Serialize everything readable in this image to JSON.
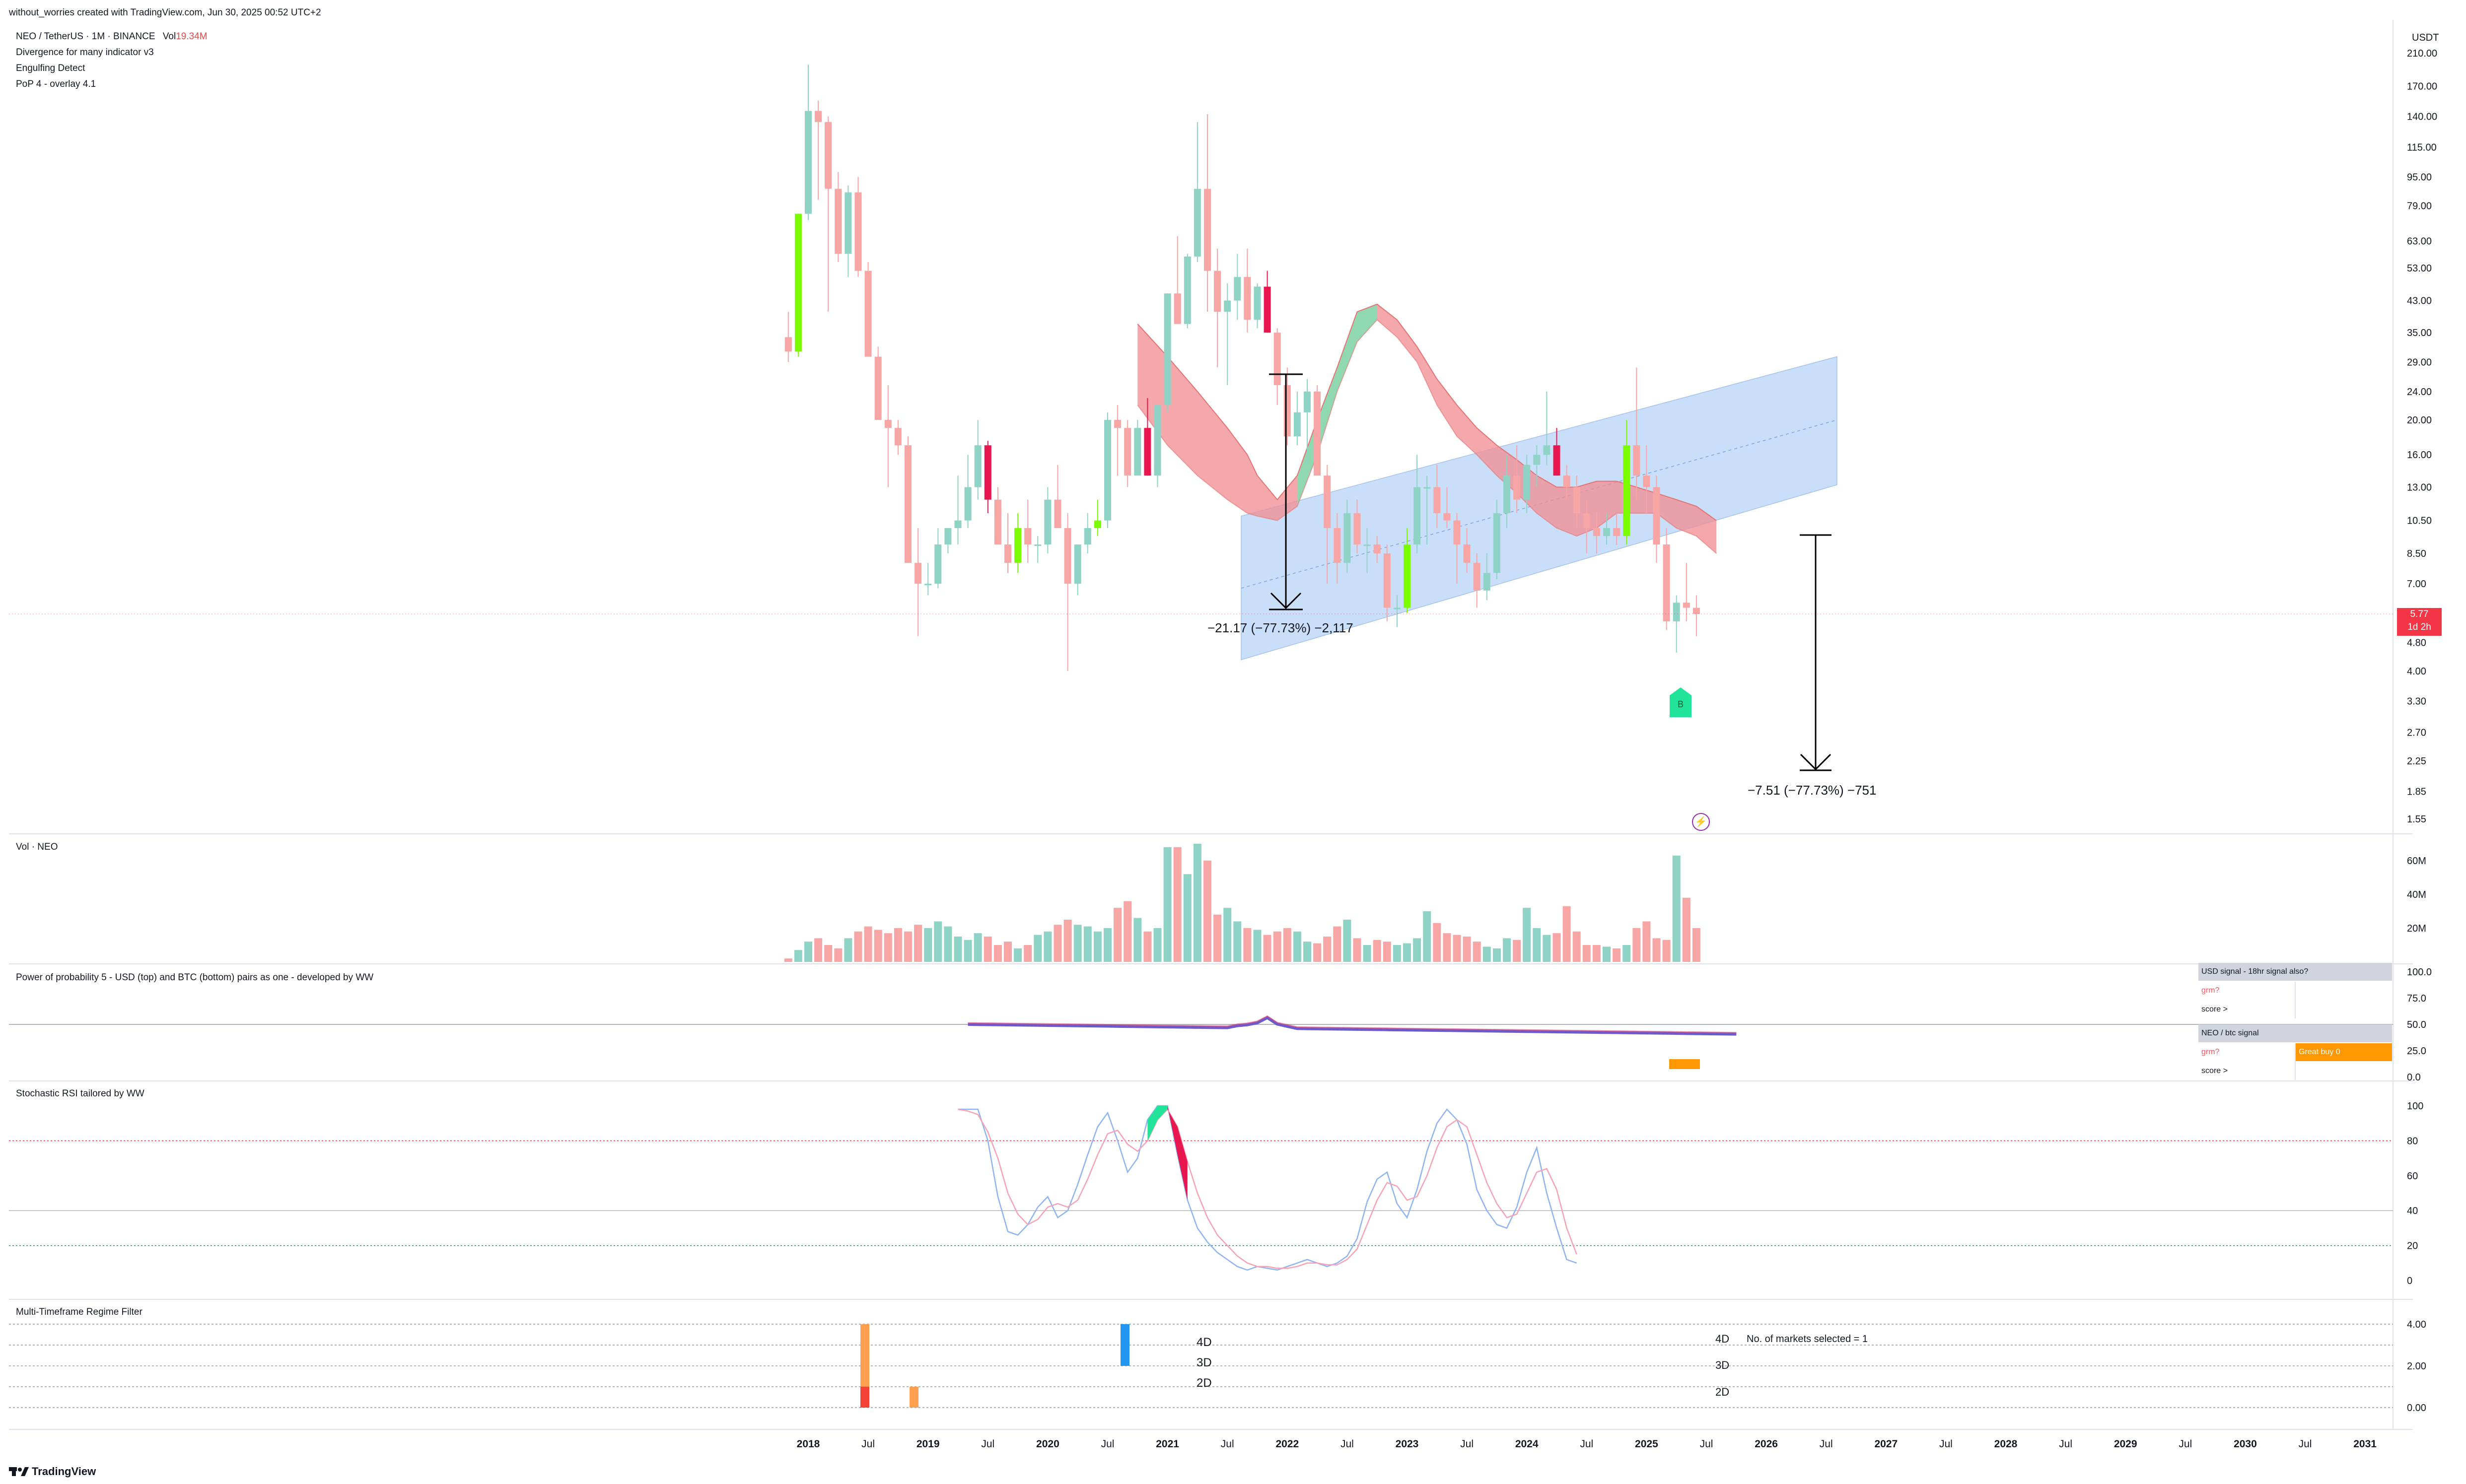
{
  "header": {
    "attribution": "without_worries created with TradingView.com, Jun 30, 2025 00:52 UTC+2"
  },
  "main": {
    "symbol_line": "NEO / TetherUS · 1M · BINANCE",
    "vol_label": "Vol",
    "vol_value": "19.34M",
    "indicators": [
      "Divergence for many indicator v3",
      "Engulfing Detect",
      "PoP 4 - overlay 4.1"
    ],
    "price_axis": {
      "unit": "USDT",
      "ticks": [
        "210.00",
        "170.00",
        "140.00",
        "115.00",
        "95.00",
        "79.00",
        "63.00",
        "53.00",
        "43.00",
        "35.00",
        "29.00",
        "24.00",
        "20.00",
        "16.00",
        "13.00",
        "10.50",
        "8.50",
        "7.00",
        "4.80",
        "4.00",
        "3.30",
        "2.70",
        "2.25",
        "1.85",
        "1.55"
      ],
      "last_price": "5.77",
      "countdown": "1d 2h"
    },
    "measure_1": "−21.17 (−77.73%) −2,117",
    "measure_2": "−7.51 (−77.73%) −751",
    "buy_marker": "B",
    "lightning": "⚡"
  },
  "volume_pane": {
    "title": "Vol · NEO",
    "ticks": [
      "60M",
      "40M",
      "20M"
    ]
  },
  "pop_pane": {
    "title": "Power of probability 5 - USD (top) and BTC (bottom) pairs as one - developed by WW",
    "ticks": [
      "100.0",
      "75.0",
      "50.0",
      "25.0",
      "0.0"
    ],
    "table": [
      [
        "USD signal - 18hr signal also?",
        ""
      ],
      [
        "grm?",
        ""
      ],
      [
        "score >",
        ""
      ],
      [
        "NEO / btc signal",
        ""
      ],
      [
        "grm?",
        "Great buy 0"
      ],
      [
        "score >",
        ""
      ]
    ]
  },
  "rsi_pane": {
    "title": "Stochastic RSI tailored by WW",
    "ticks": [
      "100",
      "80",
      "60",
      "40",
      "20",
      "0"
    ]
  },
  "regime_pane": {
    "title": "Multi-Timeframe Regime Filter",
    "ticks": [
      "4.00",
      "2.00",
      "0.00"
    ],
    "labels_mid": [
      "4D",
      "3D",
      "2D"
    ],
    "labels_right": [
      "4D",
      "3D",
      "2D"
    ],
    "markets_note": "No. of markets selected = 1"
  },
  "time_axis": [
    "2018",
    "Jul",
    "2019",
    "Jul",
    "2020",
    "Jul",
    "2021",
    "Jul",
    "2022",
    "Jul",
    "2023",
    "Jul",
    "2024",
    "Jul",
    "2025",
    "Jul",
    "2026",
    "Jul",
    "2027",
    "Jul",
    "2028",
    "Jul",
    "2029",
    "Jul",
    "2030",
    "Jul",
    "2031"
  ],
  "footer": {
    "logo": "TradingView"
  },
  "colors": {
    "up": "#8fd3c6",
    "down": "#f7a5a5",
    "bull_engulf": "#7cfc00",
    "bear_engulf": "#e8174f",
    "channel": "#bcd6f7",
    "ribbon_red": "#f28b90",
    "ribbon_green": "#7ee2b0",
    "stoch_k": "#8fb4f2",
    "stoch_d": "#f5a3b5",
    "pop_line": "#6a5acd",
    "orange": "#ff9800"
  },
  "chart_data": [
    {
      "type": "candlestick",
      "title": "NEO / TetherUS · 1M · BINANCE",
      "ylabel": "USDT",
      "y_scale": "log",
      "ylim": [
        1.5,
        220
      ],
      "x_range": [
        "2017-11",
        "2031-01"
      ],
      "candles": [
        {
          "t": "2017-11",
          "o": 34,
          "h": 40,
          "l": 29,
          "c": 31
        },
        {
          "t": "2017-12",
          "o": 31,
          "h": 75,
          "l": 30,
          "c": 75
        },
        {
          "t": "2018-01",
          "o": 75,
          "h": 195,
          "l": 72,
          "c": 145
        },
        {
          "t": "2018-02",
          "o": 145,
          "h": 155,
          "l": 82,
          "c": 135
        },
        {
          "t": "2018-03",
          "o": 135,
          "h": 140,
          "l": 40,
          "c": 88
        },
        {
          "t": "2018-04",
          "o": 88,
          "h": 98,
          "l": 55,
          "c": 58
        },
        {
          "t": "2018-05",
          "o": 58,
          "h": 90,
          "l": 50,
          "c": 86
        },
        {
          "t": "2018-06",
          "o": 86,
          "h": 95,
          "l": 50,
          "c": 52
        },
        {
          "t": "2018-07",
          "o": 52,
          "h": 55,
          "l": 30,
          "c": 30
        },
        {
          "t": "2018-08",
          "o": 30,
          "h": 32,
          "l": 20,
          "c": 20
        },
        {
          "t": "2018-09",
          "o": 20,
          "h": 25,
          "l": 13,
          "c": 19
        },
        {
          "t": "2018-10",
          "o": 19,
          "h": 20,
          "l": 16,
          "c": 17
        },
        {
          "t": "2018-11",
          "o": 17,
          "h": 18,
          "l": 8,
          "c": 8
        },
        {
          "t": "2018-12",
          "o": 8,
          "h": 10,
          "l": 5,
          "c": 7
        },
        {
          "t": "2019-01",
          "o": 7,
          "h": 8,
          "l": 6.5,
          "c": 7
        },
        {
          "t": "2019-02",
          "o": 7,
          "h": 10,
          "l": 6.8,
          "c": 9
        },
        {
          "t": "2019-03",
          "o": 9,
          "h": 10,
          "l": 8.5,
          "c": 10
        },
        {
          "t": "2019-04",
          "o": 10,
          "h": 14,
          "l": 9,
          "c": 10.5
        },
        {
          "t": "2019-05",
          "o": 10.5,
          "h": 16,
          "l": 10,
          "c": 13
        },
        {
          "t": "2019-06",
          "o": 13,
          "h": 20,
          "l": 12,
          "c": 17
        },
        {
          "t": "2019-07",
          "o": 17,
          "h": 17.5,
          "l": 11,
          "c": 12
        },
        {
          "t": "2019-08",
          "o": 12,
          "h": 13,
          "l": 9,
          "c": 9
        },
        {
          "t": "2019-09",
          "o": 9,
          "h": 11,
          "l": 7.5,
          "c": 8
        },
        {
          "t": "2019-10",
          "o": 8,
          "h": 11,
          "l": 7.5,
          "c": 10
        },
        {
          "t": "2019-11",
          "o": 10,
          "h": 12,
          "l": 8,
          "c": 9
        },
        {
          "t": "2019-12",
          "o": 9,
          "h": 9.5,
          "l": 8,
          "c": 9
        },
        {
          "t": "2020-01",
          "o": 9,
          "h": 13,
          "l": 8.5,
          "c": 12
        },
        {
          "t": "2020-02",
          "o": 12,
          "h": 15,
          "l": 10,
          "c": 10
        },
        {
          "t": "2020-03",
          "o": 10,
          "h": 11,
          "l": 4,
          "c": 7
        },
        {
          "t": "2020-04",
          "o": 7,
          "h": 9,
          "l": 6.5,
          "c": 9
        },
        {
          "t": "2020-05",
          "o": 9,
          "h": 11,
          "l": 8.5,
          "c": 10
        },
        {
          "t": "2020-06",
          "o": 10,
          "h": 12,
          "l": 9.5,
          "c": 10.5
        },
        {
          "t": "2020-07",
          "o": 10.5,
          "h": 21,
          "l": 10,
          "c": 20
        },
        {
          "t": "2020-08",
          "o": 20,
          "h": 22,
          "l": 14,
          "c": 19
        },
        {
          "t": "2020-09",
          "o": 19,
          "h": 20,
          "l": 13,
          "c": 14
        },
        {
          "t": "2020-10",
          "o": 14,
          "h": 20,
          "l": 14,
          "c": 19
        },
        {
          "t": "2020-11",
          "o": 19,
          "h": 23,
          "l": 14,
          "c": 14
        },
        {
          "t": "2020-12",
          "o": 14,
          "h": 22,
          "l": 13,
          "c": 22
        },
        {
          "t": "2021-01",
          "o": 22,
          "h": 45,
          "l": 21,
          "c": 45
        },
        {
          "t": "2021-02",
          "o": 45,
          "h": 65,
          "l": 37,
          "c": 37
        },
        {
          "t": "2021-03",
          "o": 37,
          "h": 58,
          "l": 36,
          "c": 57
        },
        {
          "t": "2021-04",
          "o": 57,
          "h": 135,
          "l": 55,
          "c": 88
        },
        {
          "t": "2021-05",
          "o": 88,
          "h": 142,
          "l": 40,
          "c": 52
        },
        {
          "t": "2021-06",
          "o": 52,
          "h": 60,
          "l": 28,
          "c": 40
        },
        {
          "t": "2021-07",
          "o": 40,
          "h": 48,
          "l": 25,
          "c": 43
        },
        {
          "t": "2021-08",
          "o": 43,
          "h": 58,
          "l": 38,
          "c": 50
        },
        {
          "t": "2021-09",
          "o": 50,
          "h": 60,
          "l": 35,
          "c": 38
        },
        {
          "t": "2021-10",
          "o": 38,
          "h": 48,
          "l": 36,
          "c": 47
        },
        {
          "t": "2021-11",
          "o": 47,
          "h": 52,
          "l": 35,
          "c": 35
        },
        {
          "t": "2021-12",
          "o": 35,
          "h": 36,
          "l": 22,
          "c": 25
        },
        {
          "t": "2022-01",
          "o": 25,
          "h": 28,
          "l": 17,
          "c": 18
        },
        {
          "t": "2022-02",
          "o": 18,
          "h": 24,
          "l": 17,
          "c": 21
        },
        {
          "t": "2022-03",
          "o": 21,
          "h": 26,
          "l": 15,
          "c": 24
        },
        {
          "t": "2022-04",
          "o": 24,
          "h": 25,
          "l": 14,
          "c": 14
        },
        {
          "t": "2022-05",
          "o": 14,
          "h": 15,
          "l": 7,
          "c": 10
        },
        {
          "t": "2022-06",
          "o": 10,
          "h": 11,
          "l": 7,
          "c": 8
        },
        {
          "t": "2022-07",
          "o": 8,
          "h": 12,
          "l": 7.5,
          "c": 11
        },
        {
          "t": "2022-08",
          "o": 11,
          "h": 12,
          "l": 8.5,
          "c": 9
        },
        {
          "t": "2022-09",
          "o": 9,
          "h": 10,
          "l": 7.5,
          "c": 9
        },
        {
          "t": "2022-10",
          "o": 9,
          "h": 9.5,
          "l": 8,
          "c": 8.5
        },
        {
          "t": "2022-11",
          "o": 8.5,
          "h": 9,
          "l": 5.5,
          "c": 6
        },
        {
          "t": "2022-12",
          "o": 6,
          "h": 6.5,
          "l": 5.3,
          "c": 6
        },
        {
          "t": "2023-01",
          "o": 6,
          "h": 10,
          "l": 5.8,
          "c": 9
        },
        {
          "t": "2023-02",
          "o": 9,
          "h": 16,
          "l": 8.5,
          "c": 13
        },
        {
          "t": "2023-03",
          "o": 13,
          "h": 14,
          "l": 9,
          "c": 13
        },
        {
          "t": "2023-04",
          "o": 13,
          "h": 15,
          "l": 10,
          "c": 11
        },
        {
          "t": "2023-05",
          "o": 11,
          "h": 13,
          "l": 10,
          "c": 10.5
        },
        {
          "t": "2023-06",
          "o": 10.5,
          "h": 11,
          "l": 7,
          "c": 9
        },
        {
          "t": "2023-07",
          "o": 9,
          "h": 10,
          "l": 7.5,
          "c": 8
        },
        {
          "t": "2023-08",
          "o": 8,
          "h": 8.5,
          "l": 6,
          "c": 6.7
        },
        {
          "t": "2023-09",
          "o": 6.7,
          "h": 8.5,
          "l": 6.3,
          "c": 7.5
        },
        {
          "t": "2023-10",
          "o": 7.5,
          "h": 12,
          "l": 7.2,
          "c": 11
        },
        {
          "t": "2023-11",
          "o": 11,
          "h": 16,
          "l": 10,
          "c": 14
        },
        {
          "t": "2023-12",
          "o": 14,
          "h": 17,
          "l": 11,
          "c": 12
        },
        {
          "t": "2024-01",
          "o": 12,
          "h": 16,
          "l": 11,
          "c": 15
        },
        {
          "t": "2024-02",
          "o": 15,
          "h": 17,
          "l": 13,
          "c": 16
        },
        {
          "t": "2024-03",
          "o": 16,
          "h": 24,
          "l": 15,
          "c": 17
        },
        {
          "t": "2024-04",
          "o": 17,
          "h": 19,
          "l": 14,
          "c": 14
        },
        {
          "t": "2024-05",
          "o": 14,
          "h": 15,
          "l": 12,
          "c": 13
        },
        {
          "t": "2024-06",
          "o": 13,
          "h": 14,
          "l": 10,
          "c": 11
        },
        {
          "t": "2024-07",
          "o": 11,
          "h": 12,
          "l": 8.5,
          "c": 10
        },
        {
          "t": "2024-08",
          "o": 10,
          "h": 11,
          "l": 8.5,
          "c": 9.5
        },
        {
          "t": "2024-09",
          "o": 9.5,
          "h": 11,
          "l": 9,
          "c": 10
        },
        {
          "t": "2024-10",
          "o": 10,
          "h": 11,
          "l": 9,
          "c": 9.5
        },
        {
          "t": "2024-11",
          "o": 9.5,
          "h": 20,
          "l": 9,
          "c": 17
        },
        {
          "t": "2024-12",
          "o": 17,
          "h": 28,
          "l": 12,
          "c": 14
        },
        {
          "t": "2025-01",
          "o": 14,
          "h": 17,
          "l": 11,
          "c": 13
        },
        {
          "t": "2025-02",
          "o": 13,
          "h": 14,
          "l": 8,
          "c": 9
        },
        {
          "t": "2025-03",
          "o": 9,
          "h": 10,
          "l": 5.2,
          "c": 5.5
        },
        {
          "t": "2025-04",
          "o": 5.5,
          "h": 6.5,
          "l": 4.5,
          "c": 6.2
        },
        {
          "t": "2025-05",
          "o": 6.2,
          "h": 8,
          "l": 5.5,
          "c": 6
        },
        {
          "t": "2025-06",
          "o": 6,
          "h": 6.5,
          "l": 5,
          "c": 5.77
        }
      ]
    },
    {
      "type": "bar",
      "title": "Vol · NEO",
      "ylim": [
        0,
        70
      ],
      "unit": "M",
      "x_start": "2017-11",
      "values": [
        2,
        7,
        12,
        14,
        10,
        8,
        14,
        18,
        21,
        19,
        17,
        20,
        18,
        22,
        20,
        24,
        21,
        15,
        13,
        17,
        15,
        10,
        12,
        8,
        10,
        16,
        18,
        22,
        25,
        22,
        21,
        18,
        20,
        32,
        36,
        26,
        18,
        20,
        68,
        68,
        52,
        70,
        60,
        28,
        32,
        24,
        20,
        19,
        16,
        18,
        20,
        18,
        12,
        11,
        15,
        21,
        25,
        14,
        10,
        13,
        12,
        10,
        11,
        14,
        30,
        23,
        17,
        16,
        15,
        12,
        9,
        8,
        14,
        13,
        32,
        20,
        16,
        17,
        33,
        18,
        10,
        10,
        9,
        8,
        10,
        20,
        24,
        14,
        13,
        63,
        38,
        20
      ]
    },
    {
      "type": "line",
      "title": "Stochastic RSI tailored by WW",
      "ylim": [
        0,
        100
      ],
      "x_start": "2019-04",
      "series": [
        {
          "values": [
            98,
            98,
            98,
            80,
            48,
            28,
            26,
            32,
            42,
            48,
            36,
            40,
            55,
            72,
            88,
            96,
            80,
            62,
            70,
            92,
            100,
            100,
            72,
            46,
            30,
            22,
            16,
            12,
            8,
            6,
            8,
            7,
            6,
            8,
            10,
            12,
            10,
            8,
            10,
            14,
            24,
            45,
            58,
            62,
            44,
            36,
            52,
            74,
            90,
            98,
            92,
            78,
            52,
            40,
            32,
            30,
            42,
            62,
            76,
            50,
            30,
            12,
            10
          ]
        },
        {
          "values": [
            98,
            97,
            95,
            85,
            70,
            50,
            38,
            32,
            35,
            42,
            44,
            42,
            46,
            58,
            72,
            84,
            86,
            78,
            74,
            80,
            92,
            98,
            88,
            68,
            50,
            36,
            26,
            20,
            14,
            10,
            8,
            8,
            7,
            7,
            8,
            10,
            10,
            9,
            9,
            12,
            18,
            32,
            46,
            56,
            54,
            46,
            48,
            60,
            76,
            88,
            92,
            88,
            72,
            56,
            44,
            36,
            38,
            50,
            62,
            64,
            52,
            30,
            15
          ]
        }
      ]
    }
  ]
}
